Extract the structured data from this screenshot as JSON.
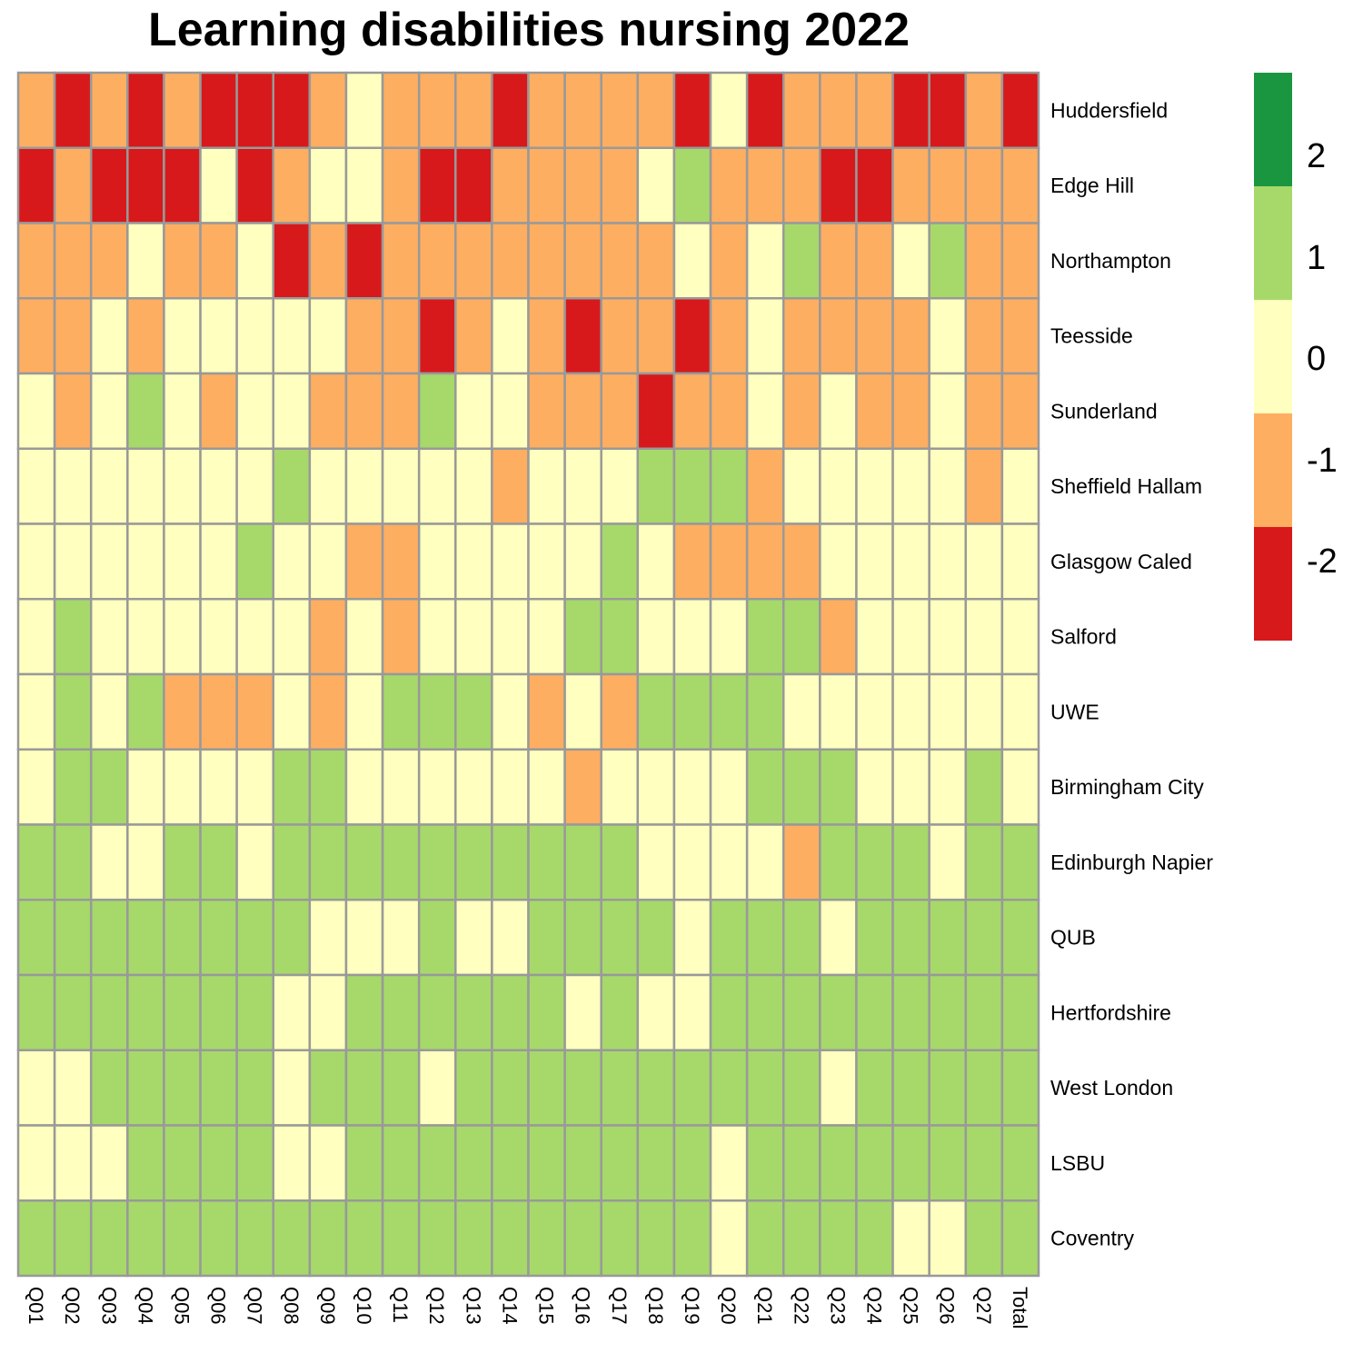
{
  "chart_data": {
    "type": "heatmap",
    "title": "Learning disabilities nursing 2022",
    "columns": [
      "Q01",
      "Q02",
      "Q03",
      "Q04",
      "Q05",
      "Q06",
      "Q07",
      "Q08",
      "Q09",
      "Q10",
      "Q11",
      "Q12",
      "Q13",
      "Q14",
      "Q15",
      "Q16",
      "Q17",
      "Q18",
      "Q19",
      "Q20",
      "Q21",
      "Q22",
      "Q23",
      "Q24",
      "Q25",
      "Q26",
      "Q27",
      "Total"
    ],
    "rows": [
      "Huddersfield",
      "Edge Hill",
      "Northampton",
      "Teesside",
      "Sunderland",
      "Sheffield Hallam",
      "Glasgow Caled",
      "Salford",
      "UWE",
      "Birmingham City",
      "Edinburgh Napier",
      "QUB",
      "Hertfordshire",
      "West London",
      "LSBU",
      "Coventry"
    ],
    "values": [
      [
        -1,
        -2,
        -1,
        -2,
        -1,
        -2,
        -2,
        -2,
        -1,
        0,
        -1,
        -1,
        -1,
        -2,
        -1,
        -1,
        -1,
        -1,
        -2,
        0,
        -2,
        -1,
        -1,
        -1,
        -2,
        -2,
        -1,
        -2
      ],
      [
        -2,
        -1,
        -2,
        -2,
        -2,
        0,
        -2,
        -1,
        0,
        0,
        -1,
        -2,
        -2,
        -1,
        -1,
        -1,
        -1,
        0,
        1,
        -1,
        -1,
        -1,
        -2,
        -2,
        -1,
        -1,
        -1,
        -1
      ],
      [
        -1,
        -1,
        -1,
        0,
        -1,
        -1,
        0,
        -2,
        -1,
        -2,
        -1,
        -1,
        -1,
        -1,
        -1,
        -1,
        -1,
        -1,
        0,
        -1,
        0,
        1,
        -1,
        -1,
        0,
        1,
        -1,
        -1
      ],
      [
        -1,
        -1,
        0,
        -1,
        0,
        0,
        0,
        0,
        0,
        -1,
        -1,
        -2,
        -1,
        0,
        -1,
        -2,
        -1,
        -1,
        -2,
        -1,
        0,
        -1,
        -1,
        -1,
        -1,
        0,
        -1,
        -1
      ],
      [
        0,
        -1,
        0,
        1,
        0,
        -1,
        0,
        0,
        -1,
        -1,
        -1,
        1,
        0,
        0,
        -1,
        -1,
        -1,
        -2,
        -1,
        -1,
        0,
        -1,
        0,
        -1,
        -1,
        0,
        -1,
        -1
      ],
      [
        0,
        0,
        0,
        0,
        0,
        0,
        0,
        1,
        0,
        0,
        0,
        0,
        0,
        -1,
        0,
        0,
        0,
        1,
        1,
        1,
        -1,
        0,
        0,
        0,
        0,
        0,
        -1,
        0
      ],
      [
        0,
        0,
        0,
        0,
        0,
        0,
        1,
        0,
        0,
        -1,
        -1,
        0,
        0,
        0,
        0,
        0,
        1,
        0,
        -1,
        -1,
        -1,
        -1,
        0,
        0,
        0,
        0,
        0,
        0
      ],
      [
        0,
        1,
        0,
        0,
        0,
        0,
        0,
        0,
        -1,
        0,
        -1,
        0,
        0,
        0,
        0,
        1,
        1,
        0,
        0,
        0,
        1,
        1,
        -1,
        0,
        0,
        0,
        0,
        0
      ],
      [
        0,
        1,
        0,
        1,
        -1,
        -1,
        -1,
        0,
        -1,
        0,
        1,
        1,
        1,
        0,
        -1,
        0,
        -1,
        1,
        1,
        1,
        1,
        0,
        0,
        0,
        0,
        0,
        0,
        0
      ],
      [
        0,
        1,
        1,
        0,
        0,
        0,
        0,
        1,
        1,
        0,
        0,
        0,
        0,
        0,
        0,
        -1,
        0,
        0,
        0,
        0,
        1,
        1,
        1,
        0,
        0,
        0,
        1,
        0
      ],
      [
        1,
        1,
        0,
        0,
        1,
        1,
        0,
        1,
        1,
        1,
        1,
        1,
        1,
        1,
        1,
        1,
        1,
        0,
        0,
        0,
        0,
        -1,
        1,
        1,
        1,
        0,
        1,
        1
      ],
      [
        1,
        1,
        1,
        1,
        1,
        1,
        1,
        1,
        0,
        0,
        0,
        1,
        0,
        0,
        1,
        1,
        1,
        1,
        0,
        1,
        1,
        1,
        0,
        1,
        1,
        1,
        1,
        1
      ],
      [
        1,
        1,
        1,
        1,
        1,
        1,
        1,
        0,
        0,
        1,
        1,
        1,
        1,
        1,
        1,
        0,
        1,
        0,
        0,
        1,
        1,
        1,
        1,
        1,
        1,
        1,
        1,
        1
      ],
      [
        0,
        0,
        1,
        1,
        1,
        1,
        1,
        0,
        1,
        1,
        1,
        0,
        1,
        1,
        1,
        1,
        1,
        1,
        1,
        1,
        1,
        1,
        0,
        1,
        1,
        1,
        1,
        1
      ],
      [
        0,
        0,
        0,
        1,
        1,
        1,
        1,
        0,
        0,
        1,
        1,
        1,
        1,
        1,
        1,
        1,
        1,
        1,
        1,
        0,
        1,
        1,
        1,
        1,
        1,
        1,
        1,
        1
      ],
      [
        1,
        1,
        1,
        1,
        1,
        1,
        1,
        1,
        1,
        1,
        1,
        1,
        1,
        1,
        1,
        1,
        1,
        1,
        1,
        0,
        1,
        1,
        1,
        1,
        0,
        0,
        1,
        1
      ]
    ],
    "color_scale": {
      "levels": [
        -2,
        -1,
        0,
        1,
        2
      ],
      "colors": [
        "#D7191C",
        "#FDAE61",
        "#FFFFBF",
        "#A6D96A",
        "#1A9641"
      ]
    },
    "legend": {
      "position": "right",
      "ticks": [
        2,
        1,
        0,
        -1,
        -2
      ],
      "tick_labels": [
        "2",
        "1",
        "0",
        "-1",
        "-2"
      ]
    },
    "cell_border_color": "#999999"
  }
}
